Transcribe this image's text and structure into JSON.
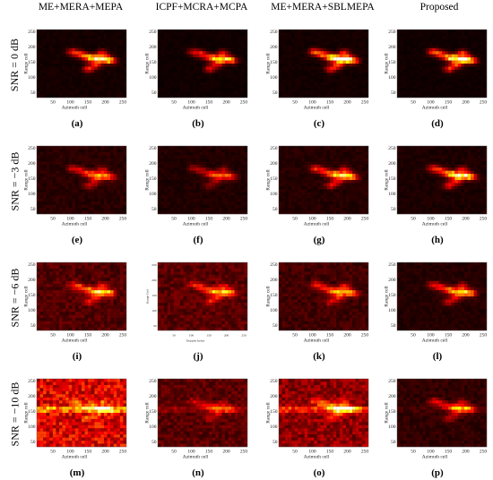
{
  "figure": {
    "columns": [
      "ME+MERA+MEPA",
      "ICPF+MCRA+MCPA",
      "ME+MERA+SBLMEPA",
      "Proposed"
    ],
    "rows": [
      "SNR = 0 dB",
      "SNR = −3 dB",
      "SNR = −6 dB",
      "SNR = −10 dB"
    ],
    "panels": [
      {
        "caption": "(a)",
        "noise": 0.05,
        "target": 0.85,
        "streak": 0.0,
        "xlabel": "Azimuth cell",
        "ylabel": "Range cell",
        "xticks": [
          "50",
          "100",
          "150",
          "200",
          "250"
        ],
        "yticks": [
          "250",
          "200",
          "150",
          "100",
          "50"
        ]
      },
      {
        "caption": "(b)",
        "noise": 0.04,
        "target": 0.75,
        "streak": 0.0,
        "xlabel": "Azimuth cell",
        "ylabel": "Range cell",
        "xticks": [
          "50",
          "100",
          "150",
          "200",
          "250"
        ],
        "yticks": [
          "250",
          "200",
          "150",
          "100",
          "50"
        ]
      },
      {
        "caption": "(c)",
        "noise": 0.05,
        "target": 1.0,
        "streak": 0.0,
        "xlabel": "Azimuth cell",
        "ylabel": "Range cell",
        "xticks": [
          "50",
          "100",
          "150",
          "200",
          "250"
        ],
        "yticks": [
          "250",
          "200",
          "150",
          "100",
          "50"
        ]
      },
      {
        "caption": "(d)",
        "noise": 0.04,
        "target": 0.95,
        "streak": 0.0,
        "xlabel": "Azimuth cell",
        "ylabel": "Range cell",
        "xticks": [
          "50",
          "100",
          "150",
          "200",
          "250"
        ],
        "yticks": [
          "250",
          "200",
          "150",
          "100",
          "50"
        ]
      },
      {
        "caption": "(e)",
        "noise": 0.1,
        "target": 0.6,
        "streak": 0.0,
        "xlabel": "Azimuth cell",
        "ylabel": "Range cell",
        "xticks": [
          "50",
          "100",
          "150",
          "200",
          "250"
        ],
        "yticks": [
          "250",
          "200",
          "150",
          "100",
          "50"
        ]
      },
      {
        "caption": "(f)",
        "noise": 0.08,
        "target": 0.45,
        "streak": 0.0,
        "xlabel": "Azimuth cell",
        "ylabel": "Range cell",
        "xticks": [
          "50",
          "100",
          "150",
          "200",
          "250"
        ],
        "yticks": [
          "250",
          "200",
          "150",
          "100",
          "50"
        ]
      },
      {
        "caption": "(g)",
        "noise": 0.09,
        "target": 0.75,
        "streak": 0.0,
        "xlabel": "Azimuth cell",
        "ylabel": "Range cell",
        "xticks": [
          "50",
          "100",
          "150",
          "200",
          "250"
        ],
        "yticks": [
          "250",
          "200",
          "150",
          "100",
          "50"
        ]
      },
      {
        "caption": "(h)",
        "noise": 0.07,
        "target": 0.85,
        "streak": 0.0,
        "xlabel": "Azimuth cell",
        "ylabel": "Range cell",
        "xticks": [
          "50",
          "100",
          "150",
          "200",
          "250"
        ],
        "yticks": [
          "250",
          "200",
          "150",
          "100",
          "50"
        ]
      },
      {
        "caption": "(i)",
        "noise": 0.2,
        "target": 0.65,
        "streak": 0.0,
        "xlabel": "Azimuth cell",
        "ylabel": "Range cell",
        "xticks": [
          "50",
          "100",
          "150",
          "200",
          "250"
        ],
        "yticks": [
          "250",
          "200",
          "150",
          "100",
          "50"
        ]
      },
      {
        "caption": "(j)",
        "noise": 0.22,
        "target": 0.6,
        "streak": 0.0,
        "xlabel": "Doppler Index",
        "ylabel": "Range Cell",
        "xticks": [
          "50",
          "100",
          "150",
          "200",
          "250"
        ],
        "yticks": [
          "250",
          "200",
          "150",
          "100",
          "50"
        ],
        "small": true
      },
      {
        "caption": "(k)",
        "noise": 0.16,
        "target": 0.6,
        "streak": 0.0,
        "xlabel": "Azimuth cell",
        "ylabel": "Range cell",
        "xticks": [
          "50",
          "100",
          "150",
          "200",
          "250"
        ],
        "yticks": [
          "250",
          "200",
          "150",
          "100",
          "50"
        ]
      },
      {
        "caption": "(l)",
        "noise": 0.09,
        "target": 0.7,
        "streak": 0.0,
        "xlabel": "Azimuth cell",
        "ylabel": "Range cell",
        "xticks": [
          "50",
          "100",
          "150",
          "200",
          "250"
        ],
        "yticks": [
          "250",
          "200",
          "150",
          "100",
          "50"
        ]
      },
      {
        "caption": "(m)",
        "noise": 0.55,
        "target": 0.35,
        "streak": 0.9,
        "xlabel": "Azimuth cell",
        "ylabel": "Range cell",
        "xticks": [
          "50",
          "100",
          "150",
          "200",
          "250"
        ],
        "yticks": [
          "250",
          "200",
          "150",
          "100",
          "50"
        ]
      },
      {
        "caption": "(n)",
        "noise": 0.22,
        "target": 0.35,
        "streak": 0.3,
        "xlabel": "Azimuth cell",
        "ylabel": "Range cell",
        "xticks": [
          "50",
          "100",
          "150",
          "200",
          "250"
        ],
        "yticks": [
          "250",
          "200",
          "150",
          "100",
          "50"
        ]
      },
      {
        "caption": "(o)",
        "noise": 0.35,
        "target": 0.6,
        "streak": 0.8,
        "xlabel": "Azimuth cell",
        "ylabel": "Range cell",
        "xticks": [
          "50",
          "100",
          "150",
          "200",
          "250"
        ],
        "yticks": [
          "250",
          "200",
          "150",
          "100",
          "50"
        ]
      },
      {
        "caption": "(p)",
        "noise": 0.12,
        "target": 0.55,
        "streak": 0.1,
        "xlabel": "Azimuth cell",
        "ylabel": "Range cell",
        "xticks": [
          "50",
          "100",
          "150",
          "200",
          "250"
        ],
        "yticks": [
          "250",
          "200",
          "150",
          "100",
          "50"
        ]
      }
    ]
  }
}
